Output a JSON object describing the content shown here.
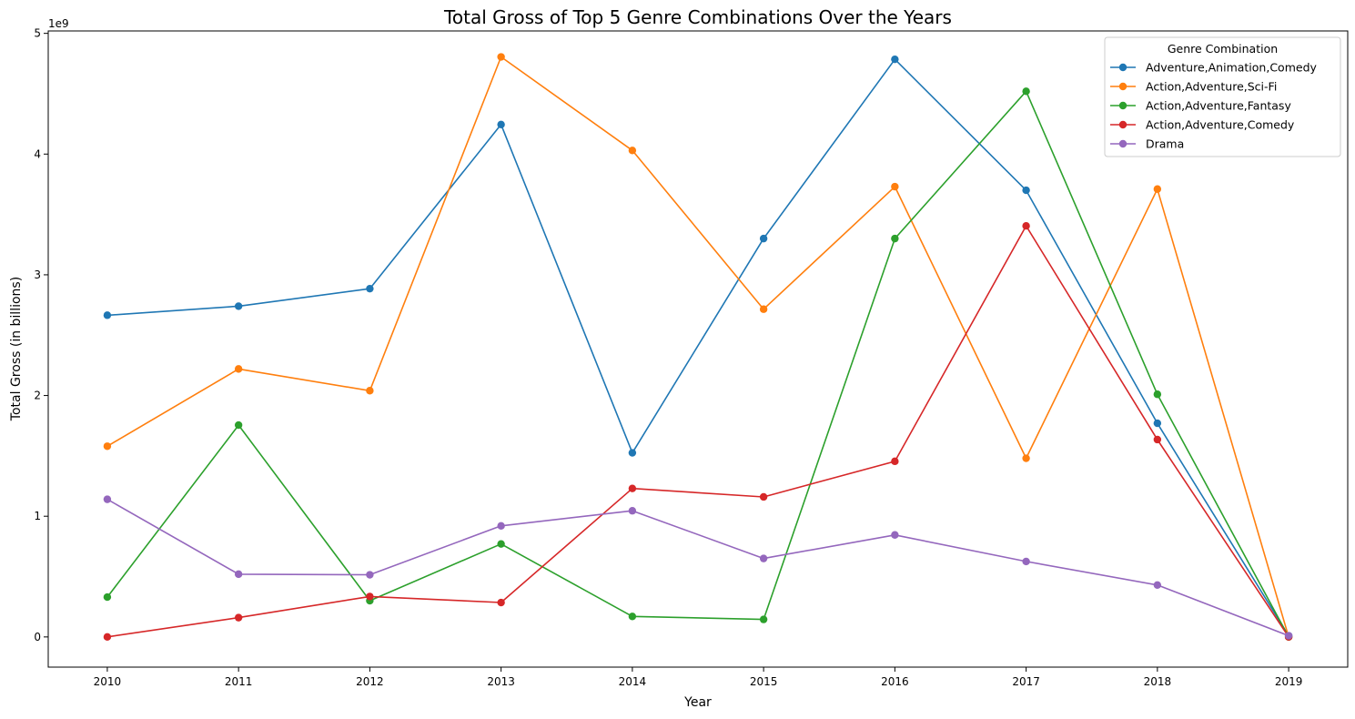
{
  "chart_data": {
    "type": "line",
    "title": "Total Gross of Top 5 Genre Combinations Over the Years",
    "xlabel": "Year",
    "ylabel": "Total Gross (in billions)",
    "y_offset_label": "1e9",
    "x": [
      2010,
      2011,
      2012,
      2013,
      2014,
      2015,
      2016,
      2017,
      2018,
      2019
    ],
    "x_tick_labels": [
      "2010",
      "2011",
      "2012",
      "2013",
      "2014",
      "2015",
      "2016",
      "2017",
      "2018",
      "2019"
    ],
    "y_ticks": [
      0,
      1,
      2,
      3,
      4,
      5
    ],
    "y_tick_labels": [
      "0",
      "1",
      "2",
      "3",
      "4",
      "5"
    ],
    "ylim": [
      -0.25,
      5.02
    ],
    "xlim": [
      2009.55,
      2019.45
    ],
    "grid": false,
    "legend": {
      "title": "Genre Combination",
      "placement": "top-right"
    },
    "series": [
      {
        "name": "Adventure,Animation,Comedy",
        "color": "#1f77b4",
        "values": [
          2.665,
          2.74,
          2.885,
          4.245,
          1.525,
          3.3,
          4.785,
          3.7,
          1.77,
          0.01
        ]
      },
      {
        "name": "Action,Adventure,Sci-Fi",
        "color": "#ff7f0e",
        "values": [
          1.58,
          2.22,
          2.04,
          4.805,
          4.03,
          2.715,
          3.73,
          1.48,
          3.71,
          0.0
        ]
      },
      {
        "name": "Action,Adventure,Fantasy",
        "color": "#2ca02c",
        "values": [
          0.33,
          1.755,
          0.3,
          0.77,
          0.17,
          0.145,
          3.3,
          4.52,
          2.01,
          0.0
        ]
      },
      {
        "name": "Action,Adventure,Comedy",
        "color": "#d62728",
        "values": [
          0.0,
          0.16,
          0.335,
          0.285,
          1.23,
          1.16,
          1.455,
          3.405,
          1.635,
          0.0
        ]
      },
      {
        "name": "Drama",
        "color": "#9467bd",
        "values": [
          1.14,
          0.52,
          0.515,
          0.92,
          1.045,
          0.65,
          0.845,
          0.625,
          0.43,
          0.01
        ]
      }
    ]
  }
}
